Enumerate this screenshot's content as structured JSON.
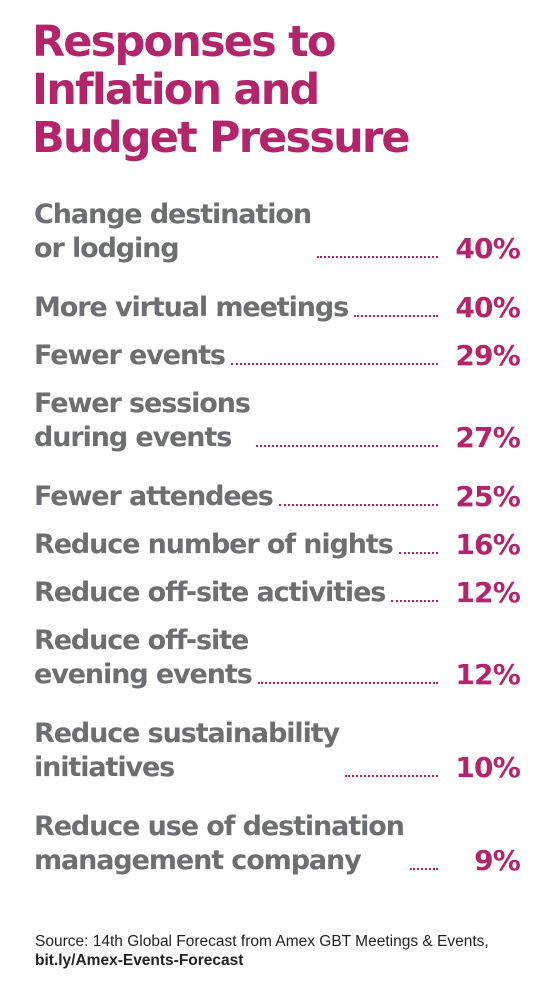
{
  "colors": {
    "accent": "#b3246a",
    "label": "#6d6e71",
    "text": "#231f20"
  },
  "chart_data": {
    "type": "bar",
    "title": "Responses to Inflation and Budget Pressure",
    "title_lines": [
      "Responses to",
      "Inflation and",
      "Budget Pressure"
    ],
    "categories": [
      "Change destination or lodging",
      "More virtual meetings",
      "Fewer events",
      "Fewer sessions during events",
      "Fewer attendees",
      "Reduce number of nights",
      "Reduce off-site activities",
      "Reduce off-site evening events",
      "Reduce sustainability initiatives",
      "Reduce use of destination management company"
    ],
    "values": [
      40,
      40,
      29,
      27,
      25,
      16,
      12,
      12,
      10,
      9
    ],
    "unit": "%",
    "rows": [
      {
        "lines": [
          "Change destination",
          "or lodging"
        ],
        "value": "40%"
      },
      {
        "lines": [
          "More virtual meetings"
        ],
        "value": "40%"
      },
      {
        "lines": [
          "Fewer events"
        ],
        "value": "29%"
      },
      {
        "lines": [
          "Fewer sessions",
          "during events"
        ],
        "value": "27%"
      },
      {
        "lines": [
          "Fewer attendees"
        ],
        "value": "25%"
      },
      {
        "lines": [
          "Reduce number of nights"
        ],
        "value": "16%"
      },
      {
        "lines": [
          "Reduce off-site activities"
        ],
        "value": "12%"
      },
      {
        "lines": [
          "Reduce off-site",
          "evening events"
        ],
        "value": "12%"
      },
      {
        "lines": [
          "Reduce sustainability",
          "initiatives"
        ],
        "value": "10%"
      },
      {
        "lines": [
          "Reduce use of destination",
          "management company"
        ],
        "value": "9%"
      }
    ]
  },
  "source": {
    "text": "Source: 14th Global Forecast from Amex GBT Meetings & Events, ",
    "link": "bit.ly/Amex-Events-Forecast"
  }
}
